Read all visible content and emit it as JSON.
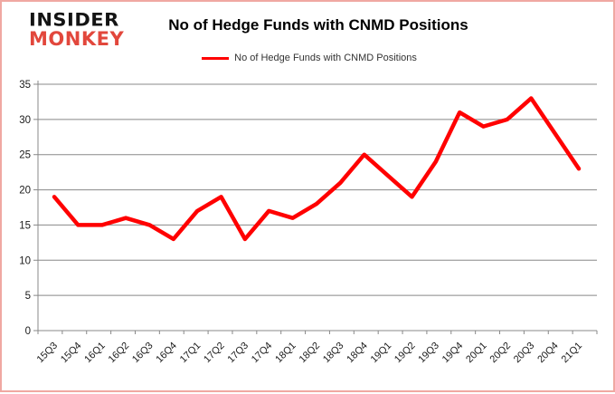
{
  "branding": {
    "logo_line1": "INSIDER",
    "logo_line2": "MONKEY",
    "logo_black": "#141414",
    "logo_red": "#e2473c"
  },
  "header": {
    "title": "No of Hedge Funds with CNMD Positions"
  },
  "legend": {
    "label": "No of Hedge Funds with CNMD Positions",
    "line_color": "#ff0000"
  },
  "chart_data": {
    "type": "line",
    "title": "No of Hedge Funds with CNMD Positions",
    "categories": [
      "15Q3",
      "15Q4",
      "16Q1",
      "16Q2",
      "16Q3",
      "16Q4",
      "17Q1",
      "17Q2",
      "17Q3",
      "17Q4",
      "18Q1",
      "18Q2",
      "18Q3",
      "18Q4",
      "19Q1",
      "19Q2",
      "19Q3",
      "19Q4",
      "20Q1",
      "20Q2",
      "20Q3",
      "20Q4",
      "21Q1"
    ],
    "series": [
      {
        "name": "No of Hedge Funds with CNMD Positions",
        "color": "#ff0000",
        "values": [
          19,
          15,
          15,
          16,
          15,
          13,
          17,
          19,
          13,
          17,
          16,
          18,
          21,
          25,
          22,
          19,
          24,
          31,
          29,
          30,
          33,
          28,
          23
        ]
      }
    ],
    "xlabel": "",
    "ylabel": "",
    "ylim": [
      0,
      35
    ],
    "ytick_interval": 5,
    "yticks": [
      0,
      5,
      10,
      15,
      20,
      25,
      30,
      35
    ],
    "grid": "horizontal",
    "gridline_color": "#888888",
    "axis_color": "#888888",
    "tick_label_color": "#1a1a1a",
    "legend_position": "top-center",
    "page_border_color": "#f0a8a2",
    "background": "#ffffff"
  }
}
